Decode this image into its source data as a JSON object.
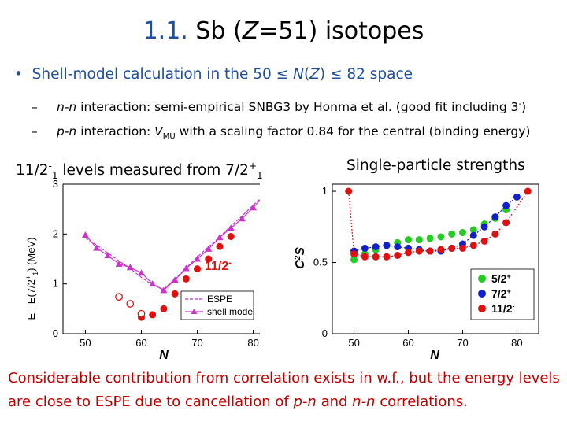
{
  "slide": {
    "title_number": "1.1.",
    "title_text": "Sb (Z=51) isotopes",
    "bullet": "Shell-model calculation in the 50 ≤ N(Z) ≤ 82 space",
    "sub1": "n-n interaction: semi-empirical SNBG3 by Honma et al. (good fit including 3⁻)",
    "sub2": "p-n interaction: V_MU with a scaling factor 0.84 for the central (binding energy)",
    "left_panel_title": "11/2⁻₁ levels measured from 7/2⁺₁",
    "right_panel_title": "Single-particle strengths",
    "conclusion": "Considerable contribution from correlation exists in w.f., but the energy levels are close to ESPE due to cancellation of p-n and n-n correlations."
  },
  "colors": {
    "title_accent": "#1f4e9a",
    "conclusion": "#c00000",
    "magenta": "#cc33cc",
    "red": "#e01010",
    "green": "#22cc22",
    "blue": "#1020d0"
  },
  "chart_data": [
    {
      "type": "line",
      "xlabel": "N",
      "ylabel": "E - E(7/2⁺₁) (MeV)",
      "xlim": [
        46,
        84
      ],
      "ylim": [
        0,
        3
      ],
      "xticks": [
        50,
        60,
        70,
        80
      ],
      "yticks": [
        0,
        1,
        2,
        3
      ],
      "series": [
        {
          "name": "ESPE",
          "style": "dashed",
          "x": [
            50,
            52,
            54,
            56,
            58,
            60,
            62,
            64,
            66,
            68,
            70,
            72,
            74,
            76,
            78,
            80,
            82
          ],
          "y": [
            1.92,
            1.78,
            1.62,
            1.46,
            1.31,
            1.13,
            0.98,
            0.89,
            1.1,
            1.32,
            1.54,
            1.74,
            1.94,
            2.16,
            2.36,
            2.58,
            2.78
          ]
        },
        {
          "name": "shell model",
          "style": "solid-triangles",
          "x": [
            50,
            52,
            54,
            56,
            58,
            60,
            62,
            64,
            66,
            68,
            70,
            72,
            74,
            76,
            78,
            80,
            82
          ],
          "y": [
            1.98,
            1.72,
            1.57,
            1.4,
            1.33,
            1.22,
            1.0,
            0.87,
            1.08,
            1.31,
            1.5,
            1.7,
            1.93,
            2.12,
            2.31,
            2.53,
            2.78
          ]
        },
        {
          "name": "11/2⁻",
          "style": "filled-circles",
          "x": [
            60,
            62,
            64,
            66,
            68,
            70,
            72,
            74,
            76,
            82
          ],
          "y": [
            0.33,
            0.38,
            0.5,
            0.8,
            1.1,
            1.3,
            1.5,
            1.75,
            1.95,
            2.78
          ]
        },
        {
          "style": "open-circles",
          "x": [
            56,
            58,
            60
          ],
          "y": [
            0.74,
            0.6,
            0.4
          ]
        }
      ]
    },
    {
      "type": "line",
      "xlabel": "N",
      "ylabel": "C²S",
      "xlim": [
        46,
        84
      ],
      "ylim": [
        0,
        1.05
      ],
      "xticks": [
        50,
        60,
        70,
        80
      ],
      "yticks": [
        0,
        0.5,
        1
      ],
      "series": [
        {
          "name": "5/2⁺",
          "x": [
            50,
            52,
            54,
            56,
            58,
            60,
            62,
            64,
            66,
            68,
            70,
            72,
            74,
            76,
            78
          ],
          "y": [
            0.52,
            0.56,
            0.59,
            0.62,
            0.64,
            0.66,
            0.66,
            0.67,
            0.68,
            0.7,
            0.71,
            0.73,
            0.77,
            0.81,
            0.87
          ]
        },
        {
          "name": "7/2⁺",
          "x": [
            50,
            52,
            54,
            56,
            58,
            60,
            62,
            64,
            66,
            68,
            70,
            72,
            74,
            76,
            78,
            80
          ],
          "y": [
            0.58,
            0.6,
            0.61,
            0.62,
            0.61,
            0.6,
            0.59,
            0.58,
            0.58,
            0.6,
            0.63,
            0.69,
            0.75,
            0.82,
            0.9,
            0.96
          ]
        },
        {
          "name": "11/2⁻",
          "x": [
            49,
            50,
            52,
            54,
            56,
            58,
            60,
            62,
            64,
            66,
            68,
            70,
            72,
            74,
            76,
            78,
            82
          ],
          "y": [
            1.0,
            0.56,
            0.54,
            0.54,
            0.54,
            0.55,
            0.57,
            0.58,
            0.58,
            0.59,
            0.6,
            0.6,
            0.62,
            0.65,
            0.7,
            0.78,
            1.0
          ]
        }
      ]
    }
  ]
}
